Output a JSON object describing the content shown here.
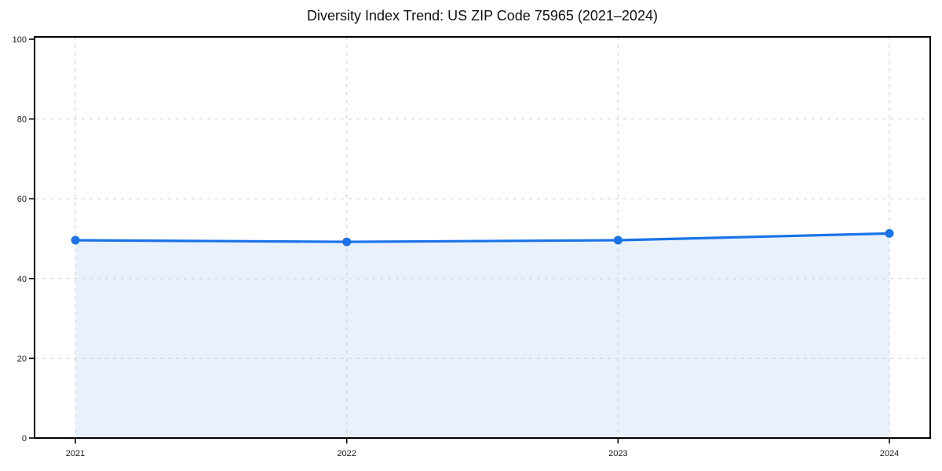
{
  "chart_data": {
    "type": "line",
    "title": "Diversity Index Trend: US ZIP Code 75965 (2021–2024)",
    "categories": [
      "2021",
      "2022",
      "2023",
      "2024"
    ],
    "series": [
      {
        "name": "Diversity Index",
        "values": [
          49.6,
          49.2,
          49.6,
          51.3
        ]
      }
    ],
    "xlabel": "",
    "ylabel": "",
    "ylim": [
      0,
      100
    ],
    "yticks": [
      0,
      20,
      40,
      60,
      80,
      100
    ],
    "grid": true,
    "grid_style": "dashed",
    "legend_position": "none",
    "area_fill": true,
    "colors": {
      "line": "#1a73e8",
      "marker": "#1a73e8",
      "area_fill": "#e9f1fd",
      "grid": "#d8d8d8",
      "axis": "#000000",
      "tick_label": "#1a1a1a",
      "title": "#111111",
      "background": "#ffffff"
    }
  }
}
